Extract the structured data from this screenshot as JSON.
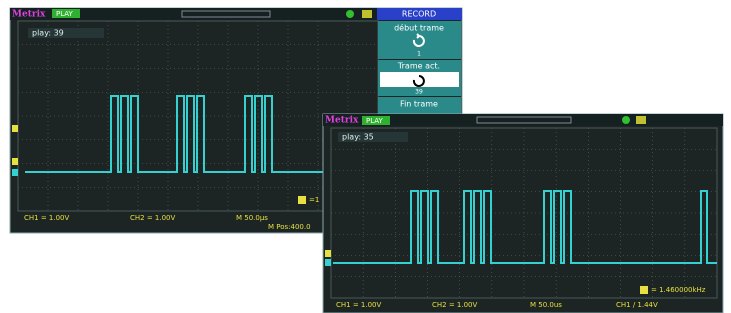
{
  "screens": [
    {
      "brand": "Metrix",
      "mode": "PLAY",
      "play": "play: 39",
      "freq": "=1",
      "menu": {
        "title": "RECORD",
        "items": [
          {
            "label": "début trame",
            "value": "1"
          },
          {
            "label": "Trame act.",
            "value": "39"
          },
          {
            "label": "Fin trame"
          }
        ]
      },
      "status": [
        "CH1 = 1.00V",
        "CH2 = 1.00V",
        "M 50.0µs",
        "M Pos:400.0"
      ]
    },
    {
      "brand": "Metrix",
      "mode": "PLAY",
      "play": "play: 35",
      "freq": "= 1.460000kHz",
      "status": [
        "CH1 = 1.00V",
        "CH2 = 1.00V",
        "M 50.0us",
        "CH1 / 1.44V"
      ]
    }
  ]
}
